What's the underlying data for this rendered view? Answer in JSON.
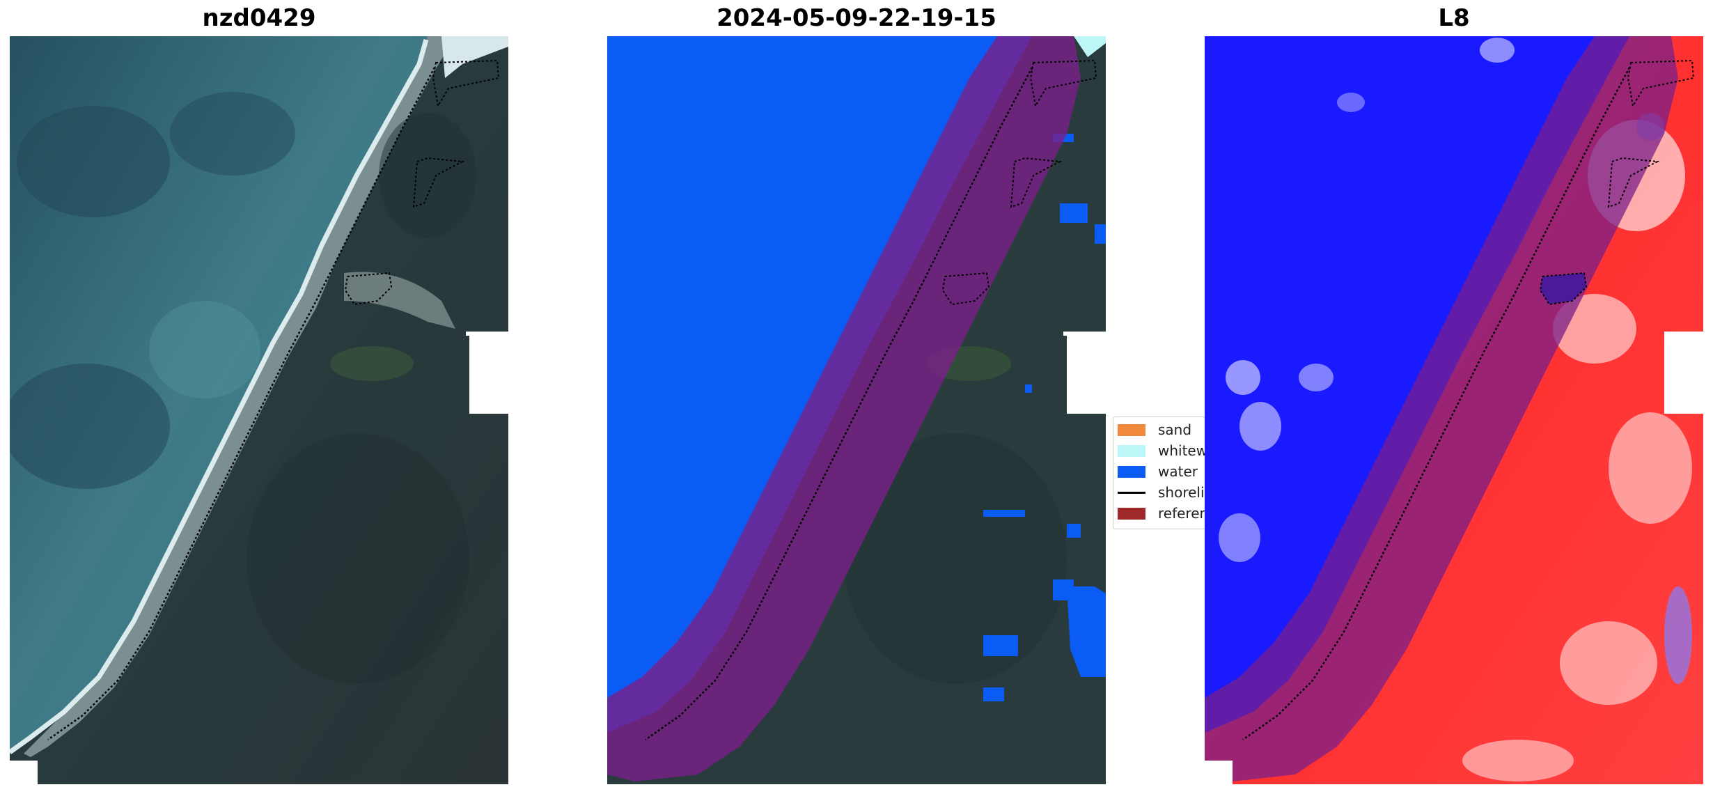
{
  "panels": [
    {
      "title": "nzd0429",
      "image": "Satellite RGB coastline image with reference shoreline overlay"
    },
    {
      "title": "2024-05-09-22-19-15",
      "image": "Classified image (water, whitewater, sand) with reference buffer and shoreline"
    },
    {
      "title": "L8",
      "image": "Water index map (blue–white–red) with reference buffer and shoreline"
    }
  ],
  "legend": {
    "items": [
      {
        "label": "sand",
        "color": "#f08a3a"
      },
      {
        "label": "whitewater",
        "color": "#bdf6f6"
      },
      {
        "label": "water",
        "color": "#0a5cf5"
      },
      {
        "label": "shoreline",
        "color": "#000000"
      },
      {
        "label": "reference shoreline buffer",
        "color": "#a02a2a"
      }
    ]
  },
  "colors": {
    "water_class": "#0a5cf5",
    "buffer_overlay": "#7a1f8a",
    "index_water": "#1a1aff",
    "index_land": "#ff2020",
    "sea_rgb": "#2f5c6e",
    "land_rgb": "#2b3a3f"
  }
}
